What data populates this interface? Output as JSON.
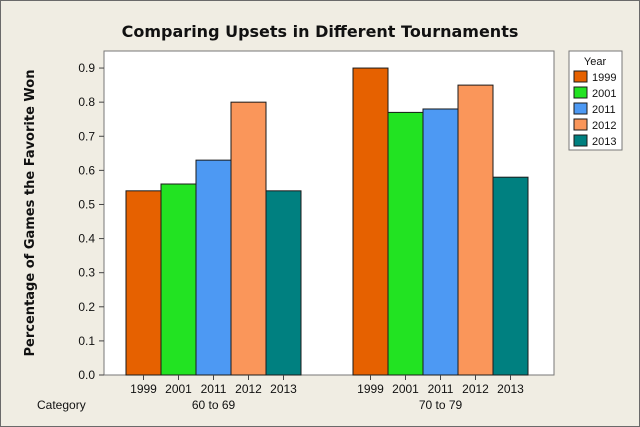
{
  "chart_data": {
    "type": "bar",
    "title": "Comparing Upsets in Different Tournaments",
    "ylabel": "Percentage of Games the Favorite Won",
    "xlabel": "Category",
    "ylim": [
      0,
      0.95
    ],
    "yticks": [
      "0.0",
      "0.1",
      "0.2",
      "0.3",
      "0.4",
      "0.5",
      "0.6",
      "0.7",
      "0.8",
      "0.9"
    ],
    "groups": [
      {
        "label": "60 to 69",
        "categories": [
          "1999",
          "2001",
          "2011",
          "2012",
          "2013"
        ],
        "values": [
          0.54,
          0.56,
          0.63,
          0.8,
          0.54
        ]
      },
      {
        "label": "70 to 79",
        "categories": [
          "1999",
          "2001",
          "2011",
          "2012",
          "2013"
        ],
        "values": [
          0.9,
          0.77,
          0.78,
          0.85,
          0.58
        ]
      }
    ],
    "legend": {
      "title": "Year",
      "placement": "right",
      "entries": [
        {
          "name": "1999",
          "color": "#e66100"
        },
        {
          "name": "2001",
          "color": "#22e322"
        },
        {
          "name": "2011",
          "color": "#4d99f3"
        },
        {
          "name": "2012",
          "color": "#fa965a"
        },
        {
          "name": "2013",
          "color": "#008080"
        }
      ]
    },
    "grid": false
  }
}
